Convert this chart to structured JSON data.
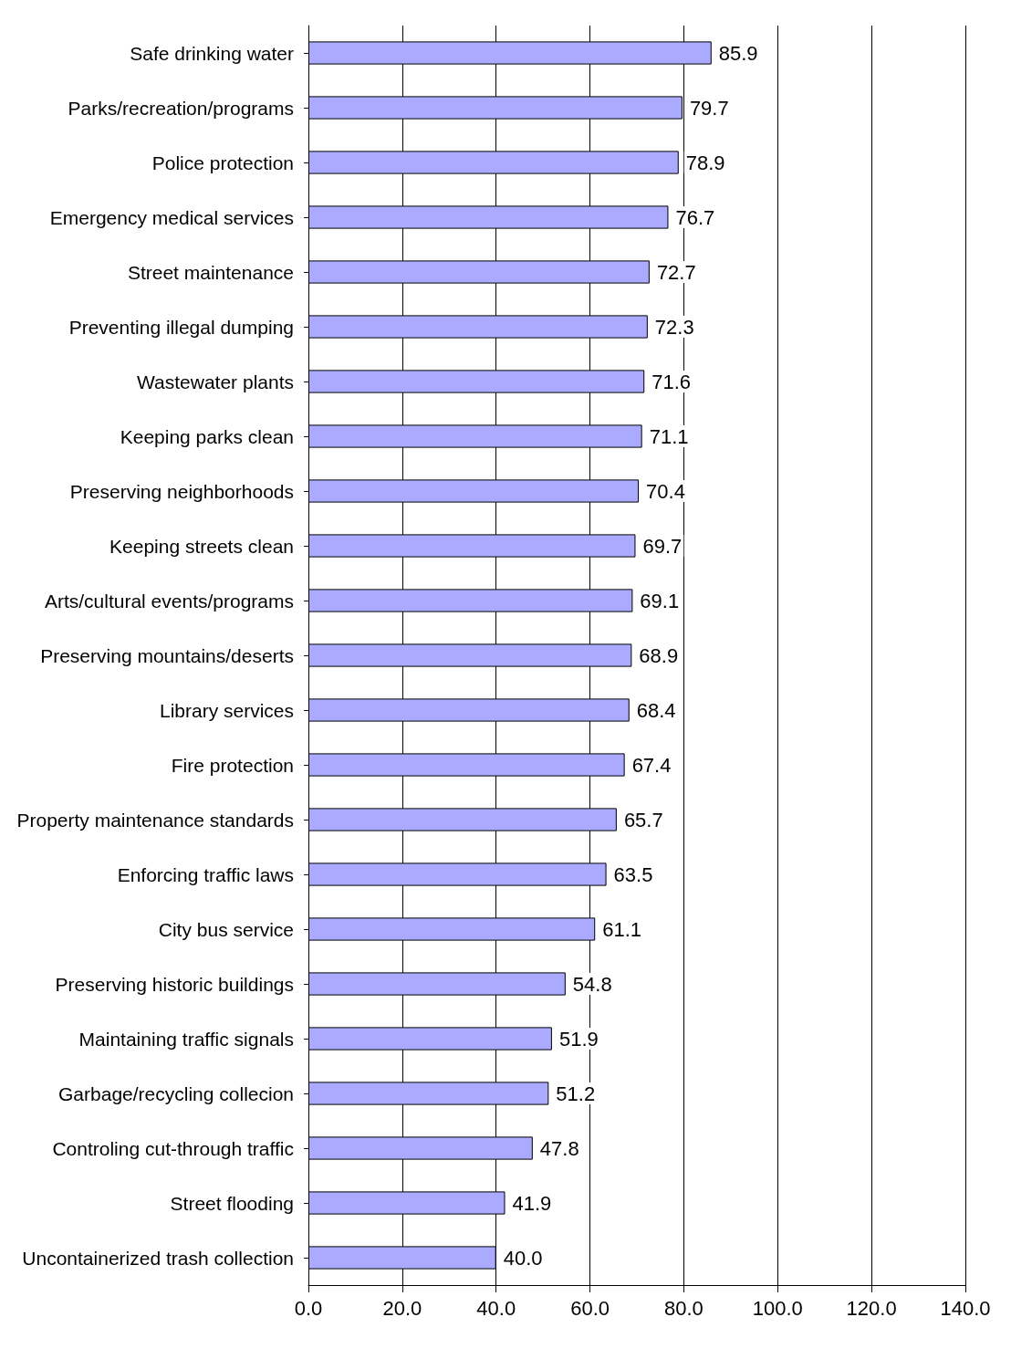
{
  "chart_data": {
    "type": "bar",
    "orientation": "horizontal",
    "categories": [
      "Safe drinking water",
      "Parks/recreation/programs",
      "Police protection",
      "Emergency medical services",
      "Street maintenance",
      "Preventing illegal dumping",
      "Wastewater plants",
      "Keeping parks clean",
      "Preserving neighborhoods",
      "Keeping streets clean",
      "Arts/cultural events/programs",
      "Preserving mountains/deserts",
      "Library services",
      "Fire protection",
      "Property maintenance standards",
      "Enforcing traffic laws",
      "City bus service",
      "Preserving historic buildings",
      "Maintaining traffic signals",
      "Garbage/recycling collecion",
      "Controling cut-through traffic",
      "Street flooding",
      "Uncontainerized trash collection"
    ],
    "values": [
      85.9,
      79.7,
      78.9,
      76.7,
      72.7,
      72.3,
      71.6,
      71.1,
      70.4,
      69.7,
      69.1,
      68.9,
      68.4,
      67.4,
      65.7,
      63.5,
      61.1,
      54.8,
      51.9,
      51.2,
      47.8,
      41.9,
      40.0
    ],
    "value_labels": [
      "85.9",
      "79.7",
      "78.9",
      "76.7",
      "72.7",
      "72.3",
      "71.6",
      "71.1",
      "70.4",
      "69.7",
      "69.1",
      "68.9",
      "68.4",
      "67.4",
      "65.7",
      "63.5",
      "61.1",
      "54.8",
      "51.9",
      "51.2",
      "47.8",
      "41.9",
      "40.0"
    ],
    "color": "#aaaaff",
    "xlim": [
      0,
      140
    ],
    "xticks": [
      {
        "value": 0,
        "label": "0.0"
      },
      {
        "value": 20,
        "label": "20.0"
      },
      {
        "value": 40,
        "label": "40.0"
      },
      {
        "value": 60,
        "label": "60.0"
      },
      {
        "value": 80,
        "label": "80.0"
      },
      {
        "value": 100,
        "label": "100.0"
      },
      {
        "value": 120,
        "label": "120.0"
      },
      {
        "value": 140,
        "label": "140.0"
      }
    ],
    "grid": "x"
  }
}
